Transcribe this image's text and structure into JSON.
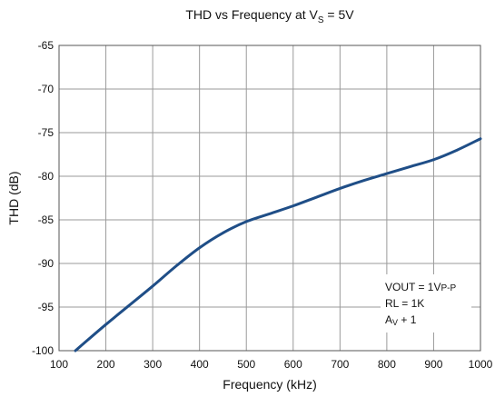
{
  "chart_data": {
    "type": "line",
    "title": {
      "main": "THD vs Frequency at V",
      "sub": "S",
      "tail": " = 5V"
    },
    "xlabel": "Frequency (kHz)",
    "ylabel": "THD (dB)",
    "xlim": [
      100,
      1000
    ],
    "ylim": [
      -100,
      -65
    ],
    "x_ticks": [
      100,
      200,
      300,
      400,
      500,
      600,
      700,
      800,
      900,
      1000
    ],
    "y_ticks": [
      -65,
      -70,
      -75,
      -80,
      -85,
      -90,
      -95,
      -100
    ],
    "grid": true,
    "line_color": "#1f4e87",
    "series": [
      {
        "x": [
          135,
          150,
          200,
          250,
          300,
          350,
          400,
          450,
          500,
          550,
          600,
          650,
          700,
          750,
          800,
          850,
          900,
          950,
          1000
        ],
        "values": [
          -100,
          -99.3,
          -97.0,
          -94.8,
          -92.6,
          -90.3,
          -88.2,
          -86.5,
          -85.2,
          -84.3,
          -83.4,
          -82.4,
          -81.4,
          -80.5,
          -79.7,
          -78.9,
          -78.1,
          -77.0,
          -75.7
        ]
      }
    ],
    "annotation": {
      "line1_a": "VOUT = 1V",
      "line1_b": "P-P",
      "line2": "RL = 1K",
      "line3_a": "A",
      "line3_b": "V",
      "line3_c": " + 1"
    }
  }
}
